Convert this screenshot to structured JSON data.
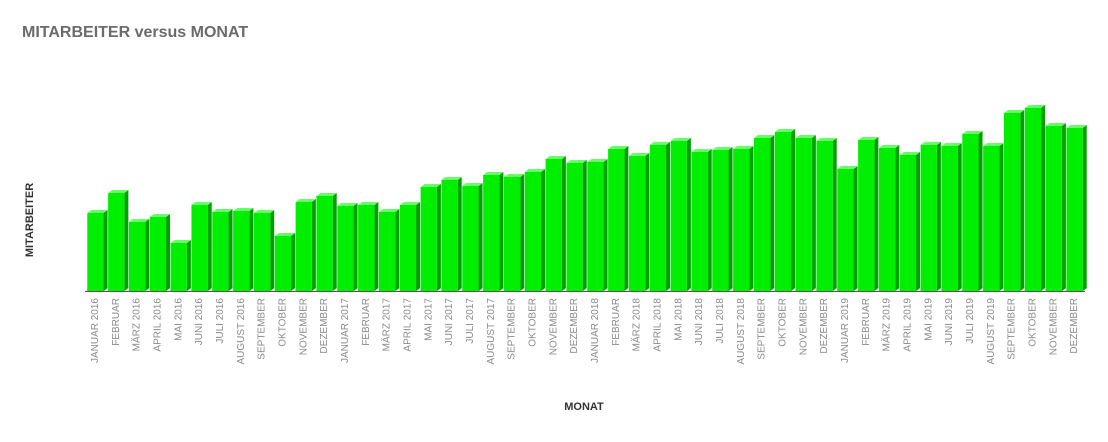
{
  "chart_data": {
    "type": "bar",
    "title": "MITARBEITER versus MONAT",
    "x_label": "MONAT",
    "y_label": "MITARBEITER",
    "categories": [
      "JANUAR 2016",
      "FEBRUAR",
      "MÄRZ 2016",
      "APRIL 2016",
      "MAI 2016",
      "JUNI 2016",
      "JULI 2016",
      "AUGUST 2016",
      "SEPTEMBER",
      "OKTOBER",
      "NOVEMBER",
      "DEZEMBER",
      "JANUAR 2017",
      "FEBRUAR",
      "MÄRZ 2017",
      "APRIL 2017",
      "MAI 2017",
      "JUNI 2017",
      "JULI 2017",
      "AUGUST 2017",
      "SEPTEMBER",
      "OKTOBER",
      "NOVEMBER",
      "DEZEMBER",
      "JANUAR 2018",
      "FEBRUAR",
      "MÄRZ 2018",
      "APRIL 2018",
      "MAI 2018",
      "JUNI 2018",
      "JULI 2018",
      "AUGUST 2018",
      "SEPTEMBER",
      "OKTOBER",
      "NOVEMBER",
      "DEZEMBER",
      "JANUAR 2019",
      "FEBRUAR",
      "MÄRZ 2019",
      "APRIL 2019",
      "MAI 2019",
      "JUNI 2019",
      "JULI 2019",
      "AUGUST 2019",
      "SEPTEMBER",
      "OKTOBER",
      "NOVEMBER",
      "DEZEMBER"
    ],
    "values": [
      78,
      98,
      69,
      74,
      48,
      86,
      79,
      80,
      78,
      55,
      89,
      95,
      85,
      86,
      79,
      86,
      104,
      111,
      105,
      116,
      114,
      119,
      132,
      128,
      129,
      142,
      135,
      146,
      150,
      139,
      141,
      142,
      153,
      159,
      153,
      150,
      122,
      151,
      143,
      136,
      146,
      145,
      157,
      145,
      178,
      183,
      165,
      163
    ],
    "color": "#00ee00",
    "ylim": [
      0,
      200
    ]
  }
}
